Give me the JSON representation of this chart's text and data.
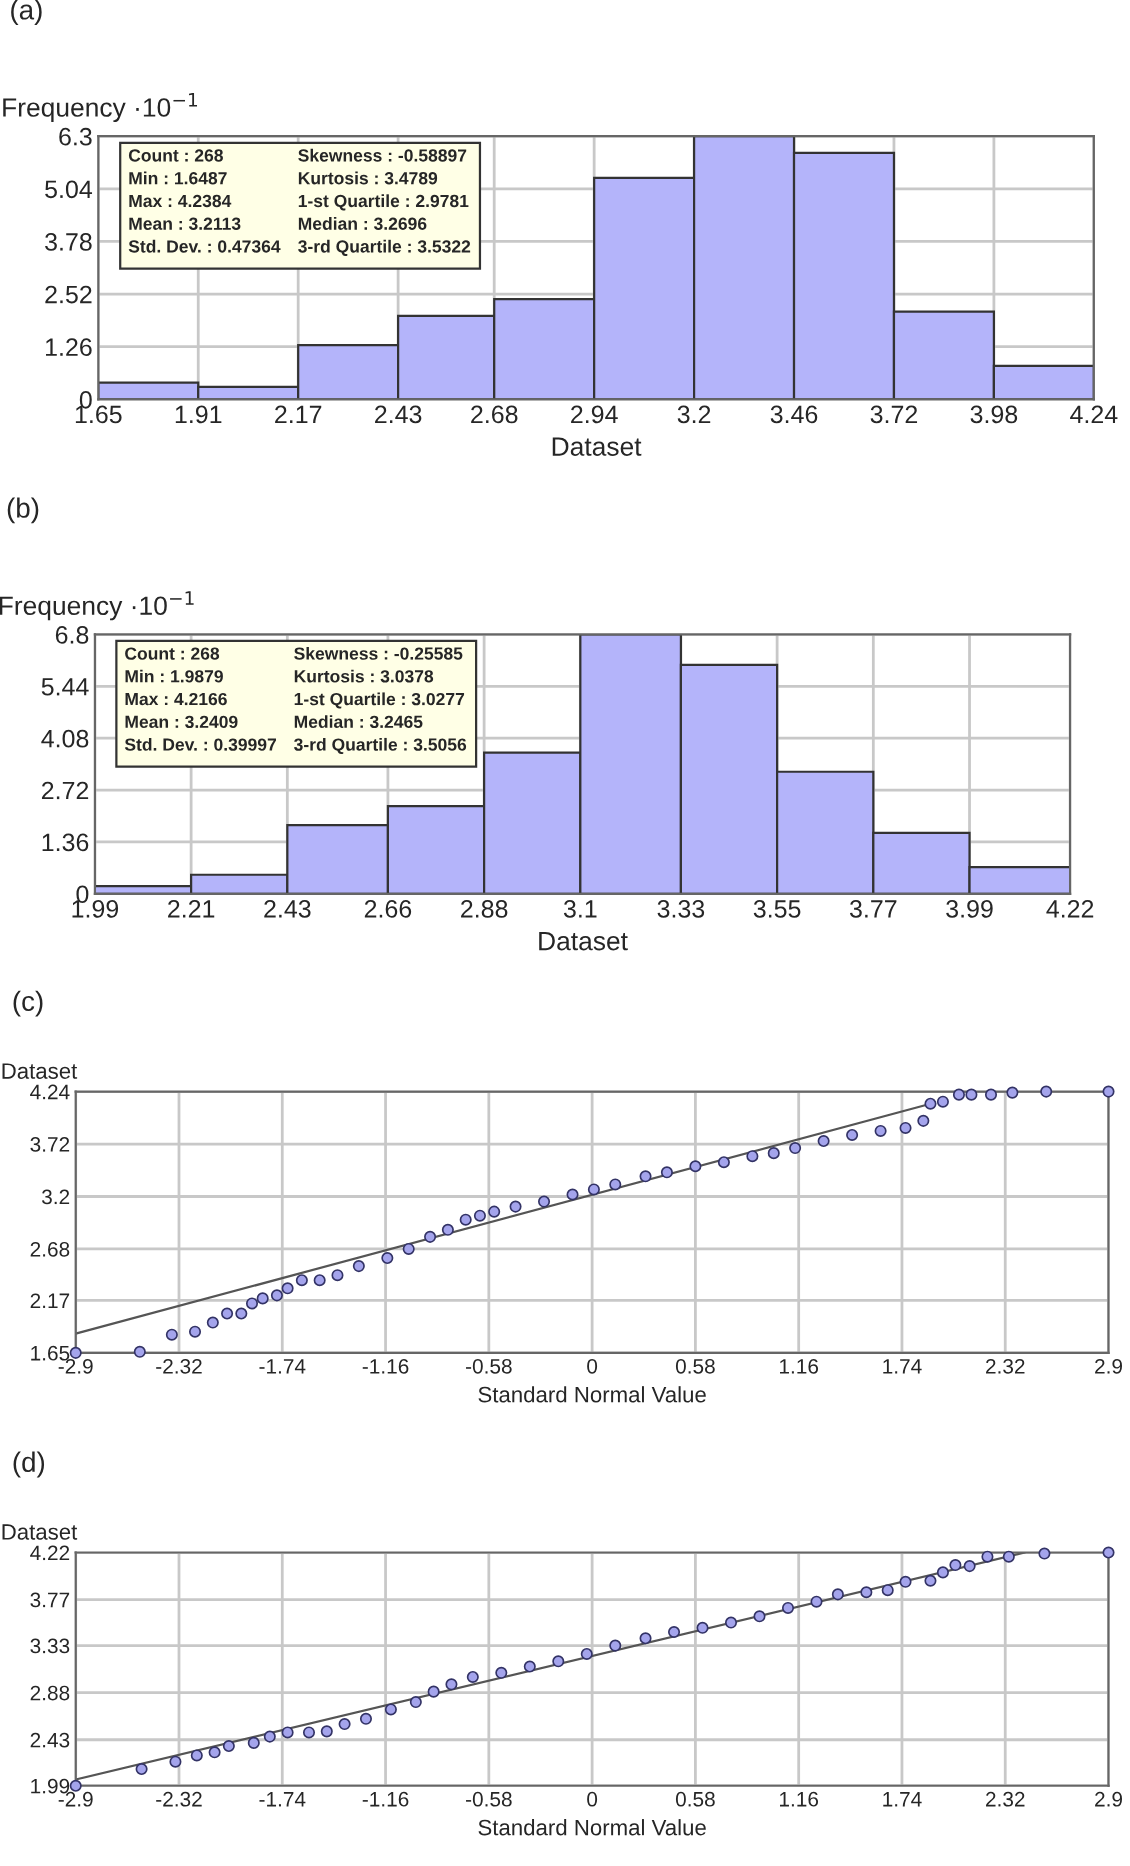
{
  "chart_data": [
    {
      "type": "histogram",
      "title": "(a)",
      "ylabel": "Frequency ·10$^{−1}$",
      "xlabel": "Dataset",
      "bins": [
        1.65,
        1.91,
        2.17,
        2.43,
        2.68,
        2.94,
        3.2,
        3.46,
        3.72,
        3.98,
        4.24
      ],
      "values": [
        0.4,
        0.3,
        1.3,
        2.0,
        2.4,
        5.3,
        6.3,
        5.9,
        2.1,
        0.8
      ],
      "color": "#b4b4fa",
      "xlim": [
        1.65,
        4.24
      ],
      "xticks": [
        1.65,
        1.91,
        2.17,
        2.43,
        2.68,
        2.94,
        3.2,
        3.46,
        3.72,
        3.98,
        4.24
      ],
      "ylim": [
        0,
        6.3
      ],
      "yticks": [
        0,
        1.26,
        2.52,
        3.78,
        5.04,
        6.3
      ],
      "grid": true,
      "annotations": [
        "Count : 268",
        "Min : 1.6487",
        "Max : 4.2384",
        "Mean : 3.2113",
        "Std. Dev. : 0.47364",
        "Skewness : -0.58897",
        "Kurtosis : 3.4789",
        "1-st Quartile : 2.9781",
        "Median : 3.2696",
        "3-rd Quartile : 3.5322"
      ]
    },
    {
      "type": "histogram",
      "title": "(b)",
      "ylabel": "Frequency ·10$^{−1}$",
      "xlabel": "Dataset",
      "bins": [
        1.99,
        2.21,
        2.43,
        2.66,
        2.88,
        3.1,
        3.33,
        3.55,
        3.77,
        3.99,
        4.22
      ],
      "values": [
        0.2,
        0.5,
        1.8,
        2.3,
        3.7,
        6.8,
        6.0,
        3.2,
        1.6,
        0.7
      ],
      "color": "#b4b4fa",
      "xlim": [
        1.99,
        4.22
      ],
      "xticks": [
        1.99,
        2.21,
        2.43,
        2.66,
        2.88,
        3.1,
        3.33,
        3.55,
        3.77,
        3.99,
        4.22
      ],
      "ylim": [
        0,
        6.8
      ],
      "yticks": [
        0,
        1.36,
        2.72,
        4.08,
        5.44,
        6.8
      ],
      "grid": true,
      "annotations": [
        "Count : 268",
        "Min : 1.9879",
        "Max : 4.2166",
        "Mean : 3.2409",
        "Std. Dev. : 0.39997",
        "Skewness : -0.25585",
        "Kurtosis : 3.0378",
        "1-st Quartile : 3.0277",
        "Median : 3.2465",
        "3-rd Quartile : 3.5056"
      ]
    },
    {
      "type": "scatter",
      "title": "(c)",
      "ylabel": "Dataset",
      "xlabel": "Standard Normal Value",
      "xlim": [
        -2.9,
        2.9
      ],
      "xticks": [
        -2.9,
        -2.32,
        -1.74,
        -1.16,
        -0.58,
        0,
        0.58,
        1.16,
        1.74,
        2.32,
        2.9
      ],
      "ylim": [
        1.65,
        4.24
      ],
      "yticks": [
        1.65,
        2.17,
        2.68,
        3.2,
        3.72,
        4.24
      ],
      "grid": true,
      "series": [
        {
          "type": "line",
          "color": "#555555",
          "line_style": "solid",
          "x": [
            -2.9,
            1.88
          ],
          "values": [
            1.84,
            4.11
          ]
        },
        {
          "type": "scatter",
          "color": "#a4a4ec",
          "marker": "circle",
          "x": [
            -2.9,
            -2.54,
            -2.36,
            -2.23,
            -2.13,
            -2.05,
            -1.97,
            -1.91,
            -1.85,
            -1.77,
            -1.71,
            -1.63,
            -1.53,
            -1.43,
            -1.31,
            -1.15,
            -1.03,
            -0.91,
            -0.81,
            -0.71,
            -0.63,
            -0.55,
            -0.43,
            -0.27,
            -0.11,
            0.01,
            0.13,
            0.3,
            0.42,
            0.58,
            0.74,
            0.9,
            1.02,
            1.14,
            1.3,
            1.46,
            1.62,
            1.76,
            1.86,
            1.9,
            1.97,
            2.06,
            2.13,
            2.24,
            2.36,
            2.55,
            2.9
          ],
          "values": [
            1.65,
            1.66,
            1.83,
            1.86,
            1.95,
            2.04,
            2.04,
            2.14,
            2.19,
            2.22,
            2.29,
            2.37,
            2.37,
            2.42,
            2.51,
            2.59,
            2.68,
            2.8,
            2.87,
            2.97,
            3.01,
            3.05,
            3.1,
            3.15,
            3.22,
            3.27,
            3.32,
            3.4,
            3.44,
            3.5,
            3.54,
            3.6,
            3.63,
            3.68,
            3.75,
            3.81,
            3.85,
            3.88,
            3.95,
            4.12,
            4.14,
            4.21,
            4.21,
            4.21,
            4.23,
            4.24,
            4.24
          ]
        }
      ]
    },
    {
      "type": "scatter",
      "title": "(d)",
      "ylabel": "Dataset",
      "xlabel": "Standard Normal Value",
      "xlim": [
        -2.9,
        2.9
      ],
      "xticks": [
        -2.9,
        -2.32,
        -1.74,
        -1.16,
        -0.58,
        0,
        0.58,
        1.16,
        1.74,
        2.32,
        2.9
      ],
      "ylim": [
        1.99,
        4.22
      ],
      "yticks": [
        1.99,
        2.43,
        2.88,
        3.33,
        3.77,
        4.22
      ],
      "grid": true,
      "series": [
        {
          "type": "line",
          "color": "#555555",
          "line_style": "solid",
          "x": [
            -2.9,
            2.43
          ],
          "values": [
            2.05,
            4.22
          ]
        },
        {
          "type": "scatter",
          "color": "#a4a4ec",
          "marker": "circle",
          "x": [
            -2.9,
            -2.53,
            -2.34,
            -2.22,
            -2.12,
            -2.04,
            -1.9,
            -1.81,
            -1.71,
            -1.59,
            -1.49,
            -1.39,
            -1.27,
            -1.13,
            -0.99,
            -0.89,
            -0.79,
            -0.67,
            -0.51,
            -0.35,
            -0.19,
            -0.03,
            0.13,
            0.3,
            0.46,
            0.62,
            0.78,
            0.94,
            1.1,
            1.26,
            1.38,
            1.54,
            1.66,
            1.76,
            1.9,
            1.97,
            2.04,
            2.12,
            2.22,
            2.34,
            2.54,
            2.9
          ],
          "values": [
            1.99,
            2.15,
            2.22,
            2.28,
            2.31,
            2.37,
            2.4,
            2.46,
            2.5,
            2.5,
            2.51,
            2.58,
            2.63,
            2.72,
            2.79,
            2.89,
            2.96,
            3.03,
            3.07,
            3.13,
            3.18,
            3.25,
            3.33,
            3.4,
            3.46,
            3.5,
            3.55,
            3.61,
            3.69,
            3.75,
            3.82,
            3.84,
            3.86,
            3.94,
            3.95,
            4.03,
            4.1,
            4.09,
            4.18,
            4.18,
            4.21,
            4.22
          ]
        }
      ]
    }
  ]
}
